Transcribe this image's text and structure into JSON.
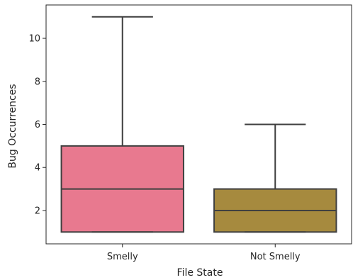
{
  "chart_data": {
    "type": "box",
    "xlabel": "File State",
    "ylabel": "Bug Occurrences",
    "ylim": [
      0.45,
      11.55
    ],
    "yticks": [
      2,
      4,
      6,
      8,
      10
    ],
    "grid": false,
    "categories": [
      "Smelly",
      "Not Smelly"
    ],
    "boxes": [
      {
        "category": "Smelly",
        "min": 1,
        "q1": 1,
        "median": 3,
        "q3": 5,
        "max": 11,
        "color": "#e8798f"
      },
      {
        "category": "Not Smelly",
        "min": 1,
        "q1": 1,
        "median": 2,
        "q3": 3,
        "max": 6,
        "color": "#a68a3e"
      }
    ]
  }
}
